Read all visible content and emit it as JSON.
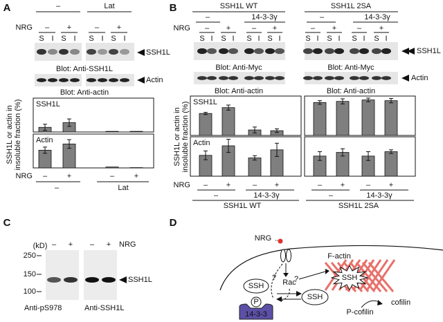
{
  "chart_data": [
    {
      "type": "bar",
      "title": "SSH1L",
      "values": [
        15,
        30,
        2,
        2
      ],
      "errors": [
        10,
        12,
        0,
        0
      ],
      "ylim": [
        0,
        100
      ],
      "color": "#7f7f7f"
    },
    {
      "type": "bar",
      "title": "Actin",
      "categories": [
        "–",
        "+",
        "–",
        "+"
      ],
      "values": [
        57,
        77,
        3,
        1
      ],
      "errors": [
        10,
        14,
        0,
        0
      ],
      "ylim": [
        0,
        100
      ],
      "color": "#7f7f7f"
    },
    {
      "type": "bar",
      "title": "SSH1L",
      "values": [
        60,
        76,
        15,
        13
      ],
      "errors": [
        3,
        7,
        8,
        5
      ],
      "ylim": [
        0,
        100
      ],
      "color": "#7f7f7f"
    },
    {
      "type": "bar",
      "title": "Actin",
      "categories": [
        "–",
        "+",
        "–",
        "+"
      ],
      "values": [
        57,
        83,
        50,
        72
      ],
      "errors": [
        12,
        18,
        6,
        18
      ],
      "ylim": [
        0,
        100
      ],
      "color": "#7f7f7f"
    },
    {
      "type": "bar",
      "values": [
        90,
        93,
        97,
        95
      ],
      "errors": [
        5,
        7,
        5,
        6
      ],
      "ylim": [
        0,
        100
      ],
      "color": "#7f7f7f"
    },
    {
      "type": "bar",
      "categories": [
        "–",
        "+",
        "–",
        "+"
      ],
      "values": [
        55,
        65,
        55,
        67
      ],
      "errors": [
        12,
        10,
        12,
        5
      ],
      "ylim": [
        0,
        100
      ],
      "color": "#7f7f7f"
    }
  ],
  "panel_a": {
    "label": "A",
    "treatment": [
      "–",
      "Lat"
    ],
    "nrg_label": "NRG",
    "nrg": [
      "–",
      "+",
      "–",
      "+"
    ],
    "lanes": [
      "S",
      "I",
      "S",
      "I",
      "S",
      "I",
      "S",
      "I"
    ],
    "blot_targets": [
      "SSH1L",
      "Actin"
    ],
    "blot_captions": [
      "Blot: Anti-SSH1L",
      "Blot: Anti-actin"
    ],
    "y_label": [
      "SSH1L or actin in",
      "insoluble fraction (%)"
    ],
    "x_nrg_label": "NRG",
    "x_groups": [
      "–",
      "Lat"
    ]
  },
  "panel_b": {
    "label": "B",
    "constructs": [
      "SSH1L WT",
      "SSH1L 2SA"
    ],
    "cotransfection": [
      "–",
      "14-3-3γ",
      "–",
      "14-3-3γ"
    ],
    "nrg_label": "NRG",
    "nrg": [
      "–",
      "+",
      "–",
      "+",
      "–",
      "+",
      "–",
      "+"
    ],
    "lanes": [
      "S",
      "I",
      "S",
      "I",
      "S",
      "I",
      "S",
      "I",
      "S",
      "I",
      "S",
      "I",
      "S",
      "I",
      "S",
      "I"
    ],
    "blot_targets": [
      "SSH1L",
      "Actin"
    ],
    "blot_captions": [
      "Blot: Anti-Myc",
      "Blot: Anti-Myc",
      "Blot: Anti-actin",
      "Blot: Anti-actin"
    ],
    "y_label": [
      "SSH1L or actin in",
      "insoluble fraction (%)"
    ],
    "x_nrg_label": "NRG",
    "x_groups": [
      "–",
      "14-3-3γ",
      "–",
      "14-3-3γ"
    ],
    "x_constructs": [
      "SSH1L WT",
      "SSH1L 2SA"
    ]
  },
  "panel_c": {
    "label": "C",
    "kd_unit": "(kD)",
    "markers": [
      "250",
      "150",
      "100"
    ],
    "nrg": [
      "–",
      "+",
      "–",
      "+"
    ],
    "nrg_label": "NRG",
    "target": "SSH1L",
    "antibodies": [
      "Anti-pS978",
      "Anti-SSH1L"
    ]
  },
  "panel_d": {
    "label": "D",
    "nrg": "NRG",
    "questions": [
      "?",
      "?"
    ],
    "rac": "Rac",
    "f_actin": "F-actin",
    "ssh": [
      "SSH",
      "SSH",
      "SSH"
    ],
    "phospho": "P",
    "protein_14_3_3": "14-3-3",
    "p_cofilin": "P-cofilin",
    "cofilin": "cofilin"
  }
}
